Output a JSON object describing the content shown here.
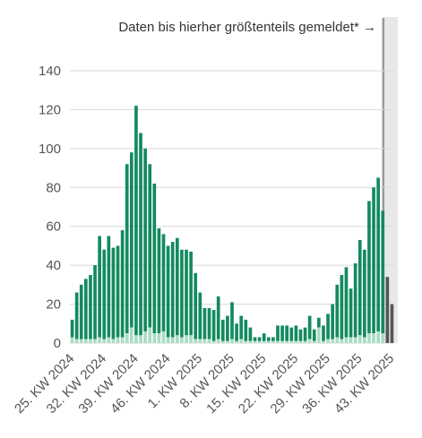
{
  "note": "Daten bis hierher größtenteils gemeldet* →",
  "colors": {
    "bar_main": "#138a5f",
    "bar_light": "#a9dcc4",
    "bar_recent": "#555555",
    "recent_bg": "#e8e8e8",
    "grid": "#d9d9d9",
    "axis_text": "#555555"
  },
  "chart_data": {
    "type": "bar",
    "stacked": true,
    "ylim": [
      0,
      140
    ],
    "yticks": [
      0,
      20,
      40,
      60,
      80,
      100,
      120,
      140
    ],
    "grid": true,
    "x_tick_labels": [
      "25. KW 2024",
      "32. KW 2024",
      "39. KW 2024",
      "46. KW 2024",
      "1. KW 2025",
      "8. KW 2025",
      "15. KW 2025",
      "22. KW 2025",
      "29. KW 2025",
      "36. KW 2025",
      "43. KW 2025"
    ],
    "x_tick_every": 7,
    "totals": [
      12,
      26,
      30,
      33,
      35,
      40,
      55,
      48,
      55,
      49,
      50,
      58,
      92,
      98,
      122,
      108,
      100,
      92,
      82,
      59,
      56,
      50,
      52,
      54,
      48,
      48,
      47,
      36,
      26,
      18,
      18,
      17,
      24,
      12,
      14,
      21,
      10,
      14,
      12,
      8,
      3,
      3,
      5,
      3,
      3,
      9,
      9,
      9,
      8,
      9,
      7,
      8,
      14,
      7,
      13,
      9,
      15,
      20,
      30,
      35,
      39,
      28,
      41,
      53,
      48,
      73,
      80,
      85,
      68,
      34,
      20
    ],
    "light": [
      3,
      2,
      2,
      2,
      2,
      2,
      3,
      2,
      3,
      2,
      3,
      3,
      5,
      8,
      4,
      4,
      6,
      8,
      5,
      5,
      6,
      3,
      3,
      4,
      3,
      4,
      4,
      2,
      2,
      2,
      2,
      1,
      2,
      1,
      1,
      2,
      1,
      2,
      1,
      1,
      1,
      1,
      1,
      1,
      1,
      1,
      1,
      1,
      1,
      1,
      1,
      1,
      2,
      1,
      8,
      1,
      2,
      2,
      3,
      2,
      3,
      3,
      3,
      4,
      3,
      5,
      5,
      6,
      5,
      0,
      0
    ],
    "recent_weeks": 2
  }
}
